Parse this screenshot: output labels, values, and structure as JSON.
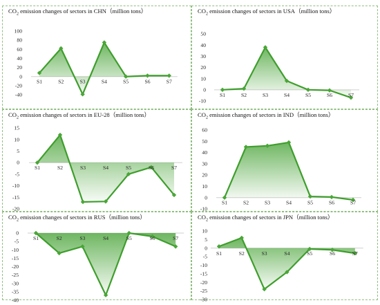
{
  "colors": {
    "line": "#3e9e2c",
    "marker": "#4aa637",
    "fill_top": "#3e9e2c",
    "axis": "#cfcfcf",
    "border": "#8fbf7f"
  },
  "chart_data": [
    {
      "type": "area",
      "title_prefix": "CO",
      "title_sub": "2",
      "title_rest": " emission changes of sectors in CHN（million tons）",
      "categories": [
        "S1",
        "S2",
        "S3",
        "S4",
        "S5",
        "S6",
        "S7"
      ],
      "values": [
        8,
        62,
        -39,
        75,
        0,
        2,
        2
      ],
      "ylim": [
        -40,
        100
      ],
      "yticks": [
        100,
        80,
        60,
        40,
        20,
        0,
        -20,
        -40
      ],
      "grid": false
    },
    {
      "type": "area",
      "title_prefix": "CO",
      "title_sub": "2",
      "title_rest": " emission changes of sectors in USA（million tons）",
      "categories": [
        "S1",
        "S2",
        "S3",
        "S4",
        "S5",
        "S6",
        "S7"
      ],
      "values": [
        0,
        1,
        38,
        8,
        0,
        -0.5,
        -7
      ],
      "ylim": [
        -10,
        50
      ],
      "yticks": [
        50,
        40,
        30,
        20,
        10,
        0,
        -10
      ],
      "grid": false
    },
    {
      "type": "area",
      "title_prefix": "CO",
      "title_sub": "2",
      "title_rest": " emission changes of sectors in EU-28（million tons）",
      "categories": [
        "S1",
        "S2",
        "S3",
        "S4",
        "S5",
        "S6",
        "S7"
      ],
      "values": [
        0,
        12,
        -17,
        -16.8,
        -5,
        -2,
        -14
      ],
      "ylim": [
        -20,
        15
      ],
      "yticks": [
        15,
        10,
        5,
        0,
        -5,
        -10,
        -15,
        -20
      ],
      "grid": false
    },
    {
      "type": "area",
      "title_prefix": "CO",
      "title_sub": "2",
      "title_rest": " emission changes of sectors in IND（million tons）",
      "categories": [
        "S1",
        "S2",
        "S3",
        "S4",
        "S5",
        "S6",
        "S7"
      ],
      "values": [
        0,
        45,
        46,
        49,
        1,
        0.5,
        -2
      ],
      "ylim": [
        -10,
        60
      ],
      "yticks": [
        60,
        50,
        40,
        30,
        20,
        10,
        0,
        -10
      ],
      "grid": false
    },
    {
      "type": "area",
      "title_prefix": "CO",
      "title_sub": "2",
      "title_rest": " emission changes of sectors in RUS（million tons）",
      "categories": [
        "S1",
        "S2",
        "S3",
        "S4",
        "S5",
        "S6",
        "S7"
      ],
      "values": [
        0,
        -12,
        -8,
        -37,
        0,
        -2,
        -8
      ],
      "ylim": [
        -40,
        0
      ],
      "yticks": [
        0,
        -5,
        -10,
        -15,
        -20,
        -25,
        -30,
        -35,
        -40
      ],
      "grid": false
    },
    {
      "type": "area",
      "title_prefix": "CO",
      "title_sub": "2",
      "title_rest": " emission changes of sectors in JPN（million tons）",
      "categories": [
        "S1",
        "S2",
        "S3",
        "S4",
        "S5",
        "S6",
        "S7"
      ],
      "values": [
        1,
        6,
        -24,
        -14,
        -0.5,
        -1,
        -3
      ],
      "ylim": [
        -30,
        10
      ],
      "yticks": [
        10,
        5,
        0,
        -5,
        -10,
        -15,
        -20,
        -25,
        -30
      ],
      "grid": false
    }
  ]
}
